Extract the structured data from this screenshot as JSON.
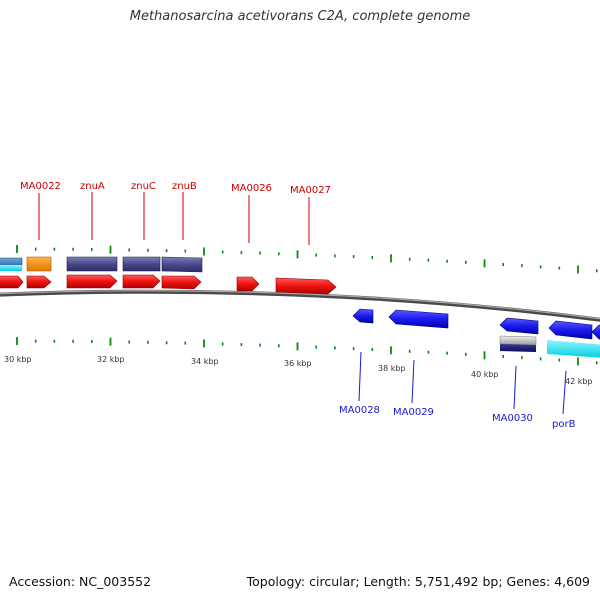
{
  "title": "Methanosarcina acetivorans C2A, complete genome",
  "footer": {
    "accession": "Accession: NC_003552",
    "summary": "Topology: circular; Length: 5,751,492 bp; Genes: 4,609"
  },
  "colors": {
    "forward_gene": "#ee1111",
    "reverse_gene": "#1a1aee",
    "forward_label": "#cc0000",
    "reverse_label": "#1a1acc",
    "tick": "#0a8a0a",
    "backbone": "#555555"
  },
  "scale_labels": [
    "30 kbp",
    "32 kbp",
    "34 kbp",
    "36 kbp",
    "38 kbp",
    "40 kbp",
    "42 kbp"
  ],
  "forward_labels": [
    "MA0022",
    "znuA",
    "znuC",
    "znuB",
    "MA0026",
    "MA0027"
  ],
  "reverse_labels": [
    "MA0028",
    "MA0029",
    "MA0030",
    "porB"
  ]
}
